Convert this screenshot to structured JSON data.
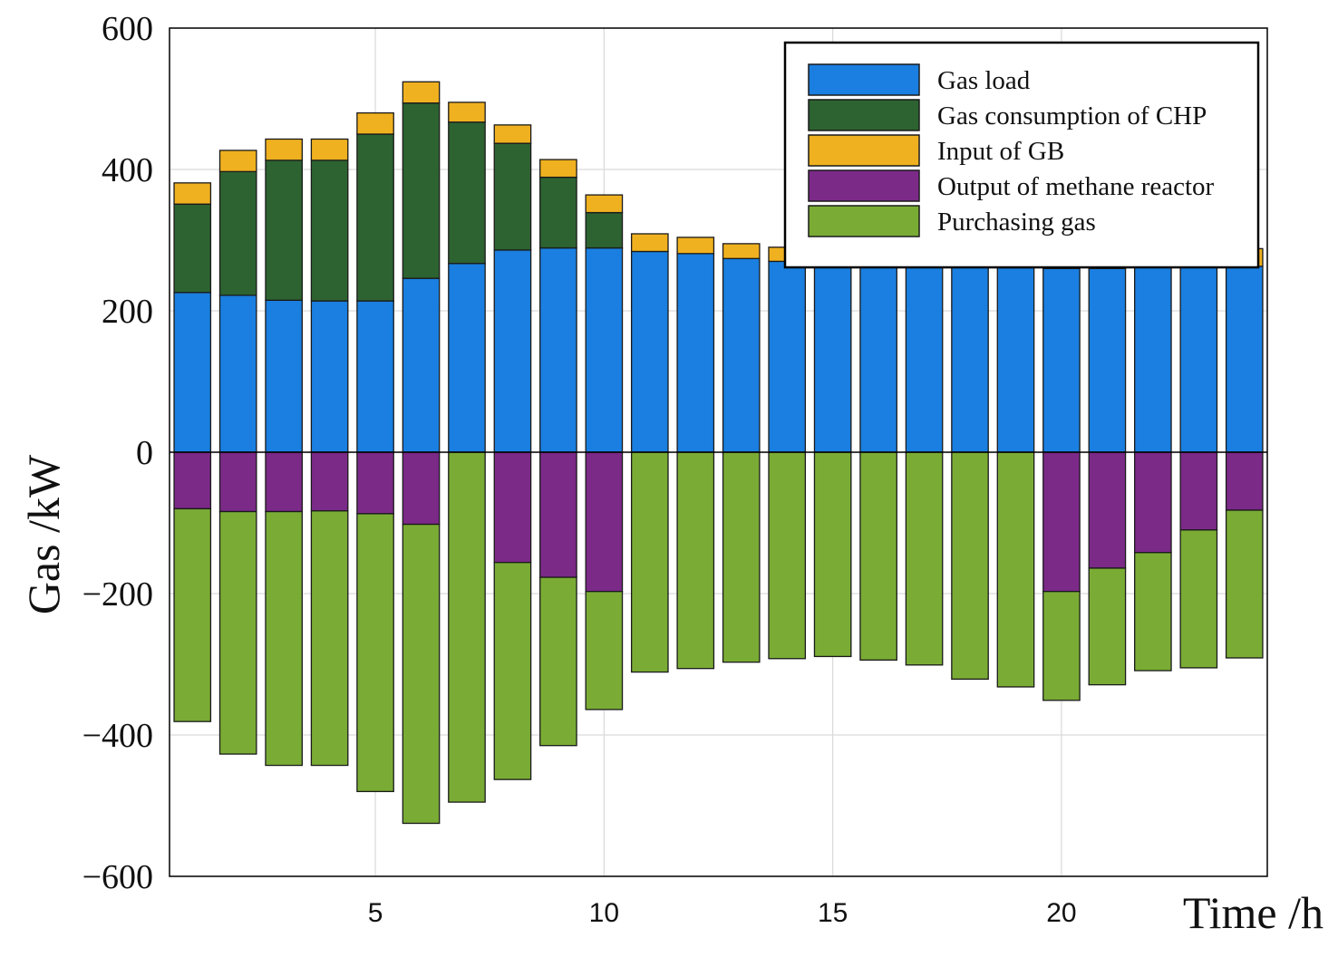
{
  "chart_data": {
    "type": "bar",
    "stacked": true,
    "title": "",
    "xlabel": "Time /h",
    "ylabel": "Gas /kW",
    "x": [
      1,
      2,
      3,
      4,
      5,
      6,
      7,
      8,
      9,
      10,
      11,
      12,
      13,
      14,
      15,
      16,
      17,
      18,
      19,
      20,
      21,
      22,
      23,
      24
    ],
    "xticks": [
      5,
      10,
      15,
      20
    ],
    "yticks": [
      -600,
      -400,
      -200,
      0,
      200,
      400,
      600
    ],
    "xlim": [
      0.5,
      24.5
    ],
    "ylim": [
      -600,
      600
    ],
    "grid": true,
    "legend_position": "top-right",
    "series": [
      {
        "name": "Gas load",
        "color": "#1a7fe0",
        "values": [
          226,
          222,
          215,
          214,
          214,
          246,
          267,
          286,
          289,
          289,
          284,
          281,
          274,
          270,
          265,
          262,
          262,
          262,
          261,
          260,
          260,
          262,
          263,
          263
        ]
      },
      {
        "name": "Gas consumption of CHP",
        "color": "#2d6331",
        "values": [
          125,
          175,
          198,
          199,
          236,
          248,
          200,
          151,
          100,
          50,
          0,
          0,
          0,
          0,
          0,
          0,
          0,
          0,
          0,
          0,
          0,
          0,
          0,
          0
        ]
      },
      {
        "name": "Input of GB",
        "color": "#f0b120",
        "values": [
          30,
          30,
          30,
          30,
          30,
          30,
          28,
          26,
          25,
          25,
          25,
          23,
          21,
          20,
          20,
          20,
          20,
          20,
          20,
          20,
          20,
          20,
          20,
          25
        ]
      },
      {
        "name": "Output of methane reactor",
        "color": "#7b2a88",
        "values": [
          -80,
          -84,
          -84,
          -83,
          -87,
          -102,
          0,
          -156,
          -177,
          -197,
          0,
          0,
          0,
          0,
          0,
          0,
          0,
          0,
          0,
          -197,
          -164,
          -142,
          -110,
          -82
        ]
      },
      {
        "name": "Purchasing gas",
        "color": "#7aac35",
        "values": [
          -301,
          -343,
          -359,
          -360,
          -393,
          -423,
          -495,
          -307,
          -238,
          -167,
          -311,
          -306,
          -297,
          -292,
          -289,
          -294,
          -301,
          -321,
          -332,
          -154,
          -165,
          -167,
          -195,
          -209
        ]
      }
    ]
  }
}
